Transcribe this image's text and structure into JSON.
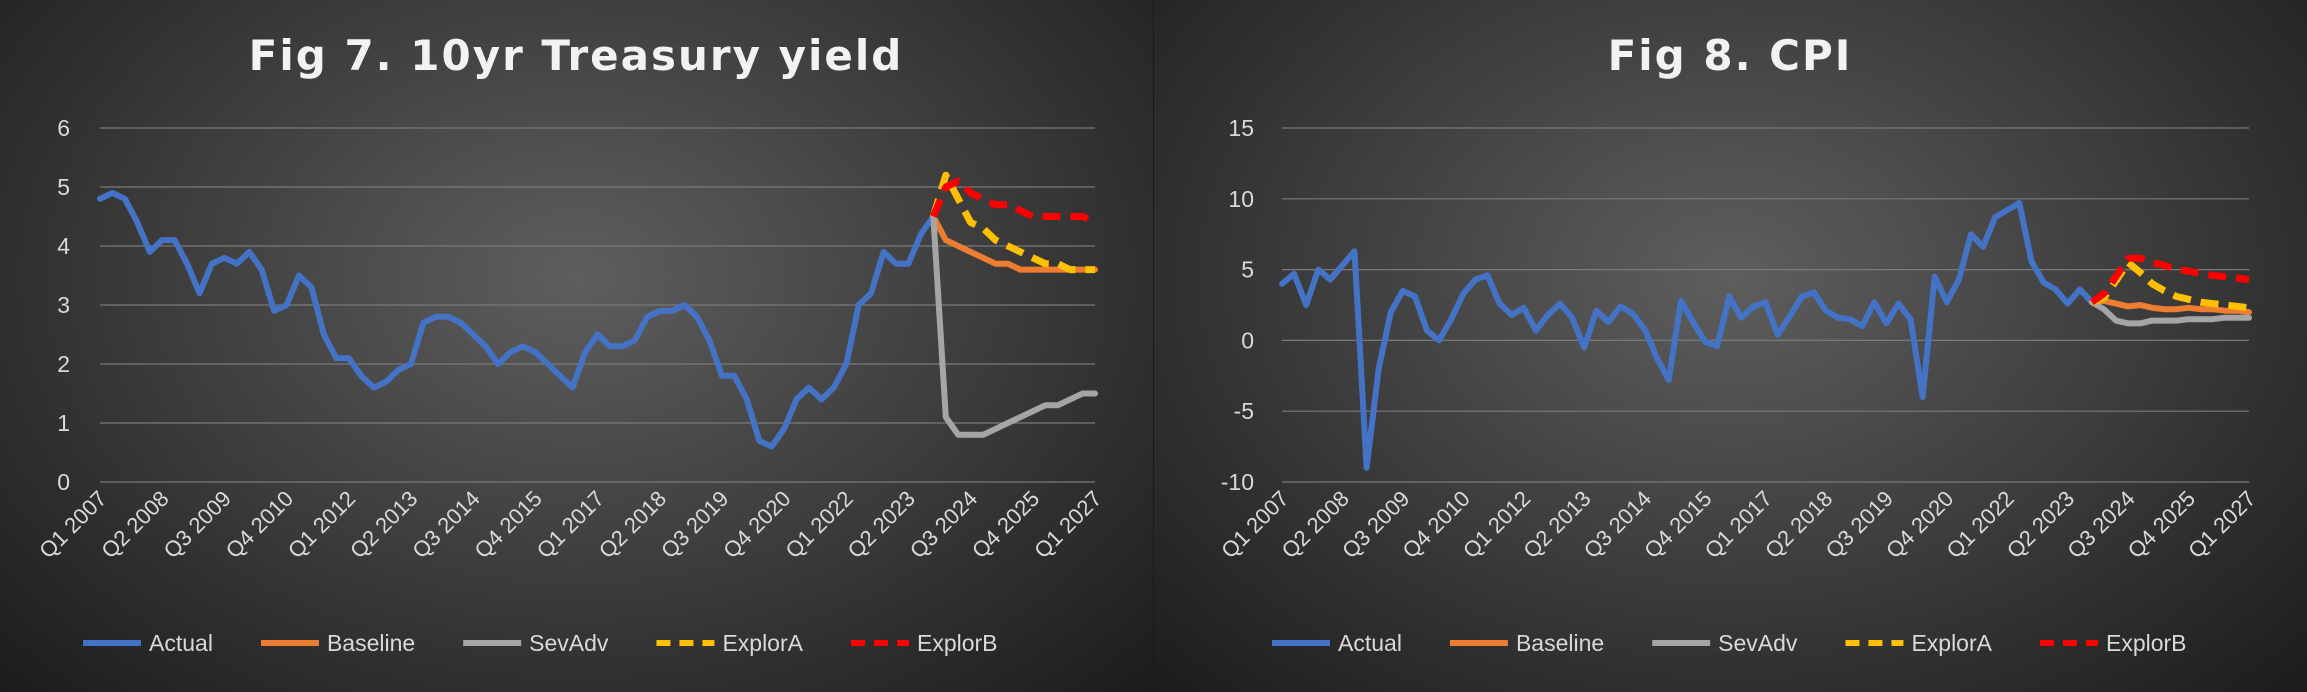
{
  "chart_data": [
    {
      "type": "line",
      "title": "Fig 7. 10yr Treasury yield",
      "ylim": [
        0,
        6
      ],
      "yticks": [
        0,
        1,
        2,
        3,
        4,
        5,
        6
      ],
      "grid": true,
      "legend_position": "bottom",
      "x_tick_labels": [
        "Q1 2007",
        "Q2 2008",
        "Q3 2009",
        "Q4 2010",
        "Q1 2012",
        "Q2 2013",
        "Q3 2014",
        "Q4 2015",
        "Q1 2017",
        "Q2 2018",
        "Q3 2019",
        "Q4 2020",
        "Q1 2022",
        "Q2 2023",
        "Q3 2024",
        "Q4 2025",
        "Q1 2027"
      ],
      "n_periods": 81,
      "series": [
        {
          "name": "Actual",
          "color": "#4472c4",
          "dash": false,
          "start": 0,
          "values": [
            4.8,
            4.9,
            4.8,
            4.4,
            3.9,
            4.1,
            4.1,
            3.7,
            3.2,
            3.7,
            3.8,
            3.7,
            3.9,
            3.6,
            2.9,
            3.0,
            3.5,
            3.3,
            2.5,
            2.1,
            2.1,
            1.8,
            1.6,
            1.7,
            1.9,
            2.0,
            2.7,
            2.8,
            2.8,
            2.7,
            2.5,
            2.3,
            2.0,
            2.2,
            2.3,
            2.2,
            2.0,
            1.8,
            1.6,
            2.2,
            2.5,
            2.3,
            2.3,
            2.4,
            2.8,
            2.9,
            2.9,
            3.0,
            2.8,
            2.4,
            1.8,
            1.8,
            1.4,
            0.7,
            0.6,
            0.9,
            1.4,
            1.6,
            1.4,
            1.6,
            2.0,
            3.0,
            3.2,
            3.9,
            3.7,
            3.7,
            4.2,
            4.5
          ]
        },
        {
          "name": "Baseline",
          "color": "#ed7d31",
          "dash": false,
          "start": 67,
          "values": [
            4.5,
            4.1,
            4.0,
            3.9,
            3.8,
            3.7,
            3.7,
            3.6,
            3.6,
            3.6,
            3.6,
            3.6,
            3.6,
            3.6
          ]
        },
        {
          "name": "SevAdv",
          "color": "#a5a5a5",
          "dash": false,
          "start": 67,
          "values": [
            4.5,
            1.1,
            0.8,
            0.8,
            0.8,
            0.9,
            1.0,
            1.1,
            1.2,
            1.3,
            1.3,
            1.4,
            1.5,
            1.5
          ]
        },
        {
          "name": "ExplorA",
          "color": "#ffc000",
          "dash": true,
          "start": 67,
          "values": [
            4.5,
            5.2,
            4.8,
            4.4,
            4.3,
            4.1,
            4.0,
            3.9,
            3.8,
            3.7,
            3.7,
            3.6,
            3.6,
            3.6
          ]
        },
        {
          "name": "ExplorB",
          "color": "#ff0000",
          "dash": true,
          "start": 67,
          "values": [
            4.5,
            5.0,
            5.1,
            4.9,
            4.8,
            4.7,
            4.7,
            4.6,
            4.5,
            4.5,
            4.5,
            4.5,
            4.5,
            4.4
          ]
        }
      ]
    },
    {
      "type": "line",
      "title": "Fig 8. CPI",
      "ylim": [
        -10,
        15
      ],
      "yticks": [
        -10,
        -5,
        0,
        5,
        10,
        15
      ],
      "grid": true,
      "legend_position": "bottom",
      "x_tick_labels": [
        "Q1 2007",
        "Q2 2008",
        "Q3 2009",
        "Q4 2010",
        "Q1 2012",
        "Q2 2013",
        "Q3 2014",
        "Q4 2015",
        "Q1 2017",
        "Q2 2018",
        "Q3 2019",
        "Q4 2020",
        "Q1 2022",
        "Q2 2023",
        "Q3 2024",
        "Q4 2025",
        "Q1 2027"
      ],
      "n_periods": 81,
      "series": [
        {
          "name": "Actual",
          "color": "#4472c4",
          "dash": false,
          "start": 0,
          "values": [
            4.0,
            4.7,
            2.5,
            5.0,
            4.3,
            5.3,
            6.3,
            -9.0,
            -2.0,
            2.0,
            3.5,
            3.1,
            0.7,
            0.0,
            1.5,
            3.3,
            4.3,
            4.6,
            2.6,
            1.8,
            2.3,
            0.7,
            1.8,
            2.6,
            1.6,
            -0.5,
            2.1,
            1.3,
            2.4,
            1.9,
            0.8,
            -1.2,
            -2.8,
            2.8,
            1.3,
            -0.1,
            -0.4,
            3.1,
            1.6,
            2.4,
            2.7,
            0.4,
            1.7,
            3.1,
            3.4,
            2.1,
            1.6,
            1.5,
            1.0,
            2.7,
            1.2,
            2.6,
            1.5,
            -4.0,
            4.5,
            2.7,
            4.3,
            7.5,
            6.6,
            8.7,
            9.2,
            9.7,
            5.6,
            4.1,
            3.6,
            2.6,
            3.6,
            2.7
          ]
        },
        {
          "name": "Baseline",
          "color": "#ed7d31",
          "dash": false,
          "start": 67,
          "values": [
            2.7,
            2.8,
            2.6,
            2.4,
            2.5,
            2.3,
            2.2,
            2.2,
            2.3,
            2.2,
            2.2,
            2.1,
            2.1,
            2.0
          ]
        },
        {
          "name": "SevAdv",
          "color": "#a5a5a5",
          "dash": false,
          "start": 67,
          "values": [
            2.7,
            2.2,
            1.4,
            1.2,
            1.2,
            1.4,
            1.4,
            1.4,
            1.5,
            1.5,
            1.5,
            1.6,
            1.6,
            1.6
          ]
        },
        {
          "name": "ExplorA",
          "color": "#ffc000",
          "dash": true,
          "start": 67,
          "values": [
            2.7,
            3.0,
            4.2,
            5.5,
            4.8,
            4.0,
            3.5,
            3.1,
            2.9,
            2.7,
            2.6,
            2.5,
            2.4,
            2.3
          ]
        },
        {
          "name": "ExplorB",
          "color": "#ff0000",
          "dash": true,
          "start": 67,
          "values": [
            2.7,
            3.3,
            4.5,
            5.8,
            5.8,
            5.5,
            5.3,
            5.0,
            4.9,
            4.7,
            4.6,
            4.5,
            4.4,
            4.3
          ]
        }
      ]
    }
  ]
}
